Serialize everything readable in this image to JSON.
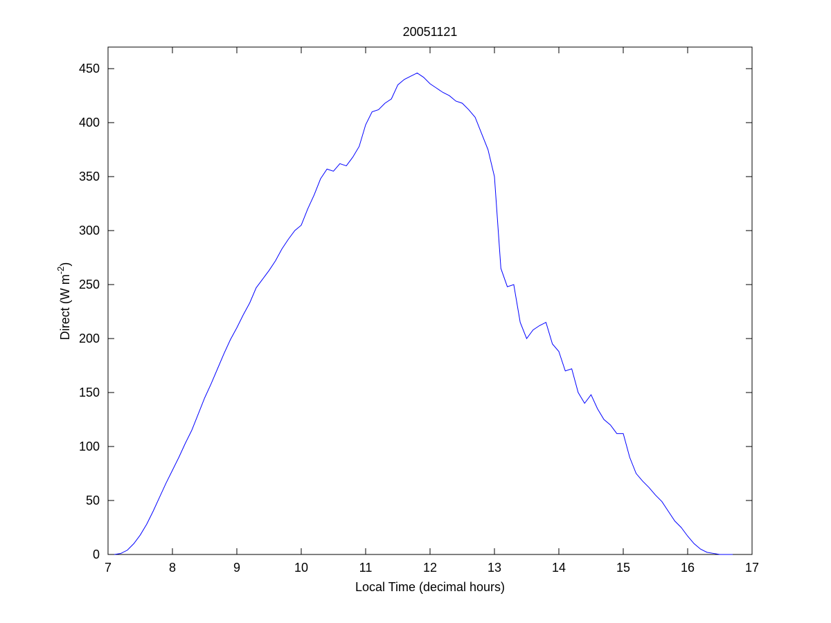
{
  "chart_data": {
    "type": "line",
    "title": "20051121",
    "xlabel": "Local Time (decimal hours)",
    "ylabel": [
      "Direct (W m",
      "-2",
      ")"
    ],
    "x": [
      7.1,
      7.2,
      7.3,
      7.4,
      7.5,
      7.6,
      7.7,
      7.8,
      7.9,
      8.0,
      8.1,
      8.2,
      8.3,
      8.4,
      8.5,
      8.6,
      8.7,
      8.8,
      8.9,
      9.0,
      9.1,
      9.2,
      9.3,
      9.4,
      9.5,
      9.6,
      9.7,
      9.8,
      9.9,
      10.0,
      10.1,
      10.2,
      10.3,
      10.4,
      10.5,
      10.6,
      10.7,
      10.8,
      10.9,
      11.0,
      11.1,
      11.2,
      11.3,
      11.4,
      11.5,
      11.6,
      11.7,
      11.8,
      11.9,
      12.0,
      12.1,
      12.2,
      12.3,
      12.4,
      12.5,
      12.6,
      12.7,
      12.8,
      12.9,
      13.0,
      13.1,
      13.2,
      13.3,
      13.4,
      13.5,
      13.6,
      13.7,
      13.8,
      13.9,
      14.0,
      14.1,
      14.2,
      14.3,
      14.4,
      14.5,
      14.6,
      14.7,
      14.8,
      14.9,
      15.0,
      15.1,
      15.2,
      15.3,
      15.4,
      15.5,
      15.6,
      15.7,
      15.8,
      15.9,
      16.0,
      16.1,
      16.2,
      16.3,
      16.4,
      16.5,
      16.6,
      16.7
    ],
    "series": [
      {
        "color": "#0000ff",
        "values": [
          0,
          1,
          4,
          10,
          18,
          28,
          40,
          53,
          66,
          78,
          90,
          103,
          115,
          130,
          145,
          158,
          172,
          186,
          199,
          210,
          222,
          233,
          247,
          255,
          263,
          272,
          283,
          292,
          300,
          305,
          320,
          333,
          348,
          357,
          355,
          362,
          360,
          368,
          378,
          398,
          410,
          412,
          418,
          422,
          435,
          440,
          443,
          446,
          442,
          436,
          432,
          428,
          425,
          420,
          418,
          412,
          405,
          390,
          375,
          350,
          265,
          248,
          250,
          215,
          200,
          208,
          212,
          215,
          195,
          188,
          170,
          172,
          150,
          140,
          148,
          135,
          125,
          120,
          112,
          112,
          90,
          75,
          68,
          62,
          55,
          49,
          40,
          31,
          25,
          17,
          10,
          5,
          2,
          1,
          0,
          0,
          0
        ]
      }
    ],
    "xlim": [
      7,
      17
    ],
    "xticks": [
      7,
      8,
      9,
      10,
      11,
      12,
      13,
      14,
      15,
      16,
      17
    ],
    "ylim": [
      0,
      470
    ],
    "yticks": [
      0,
      50,
      100,
      150,
      200,
      250,
      300,
      350,
      400,
      450
    ]
  }
}
